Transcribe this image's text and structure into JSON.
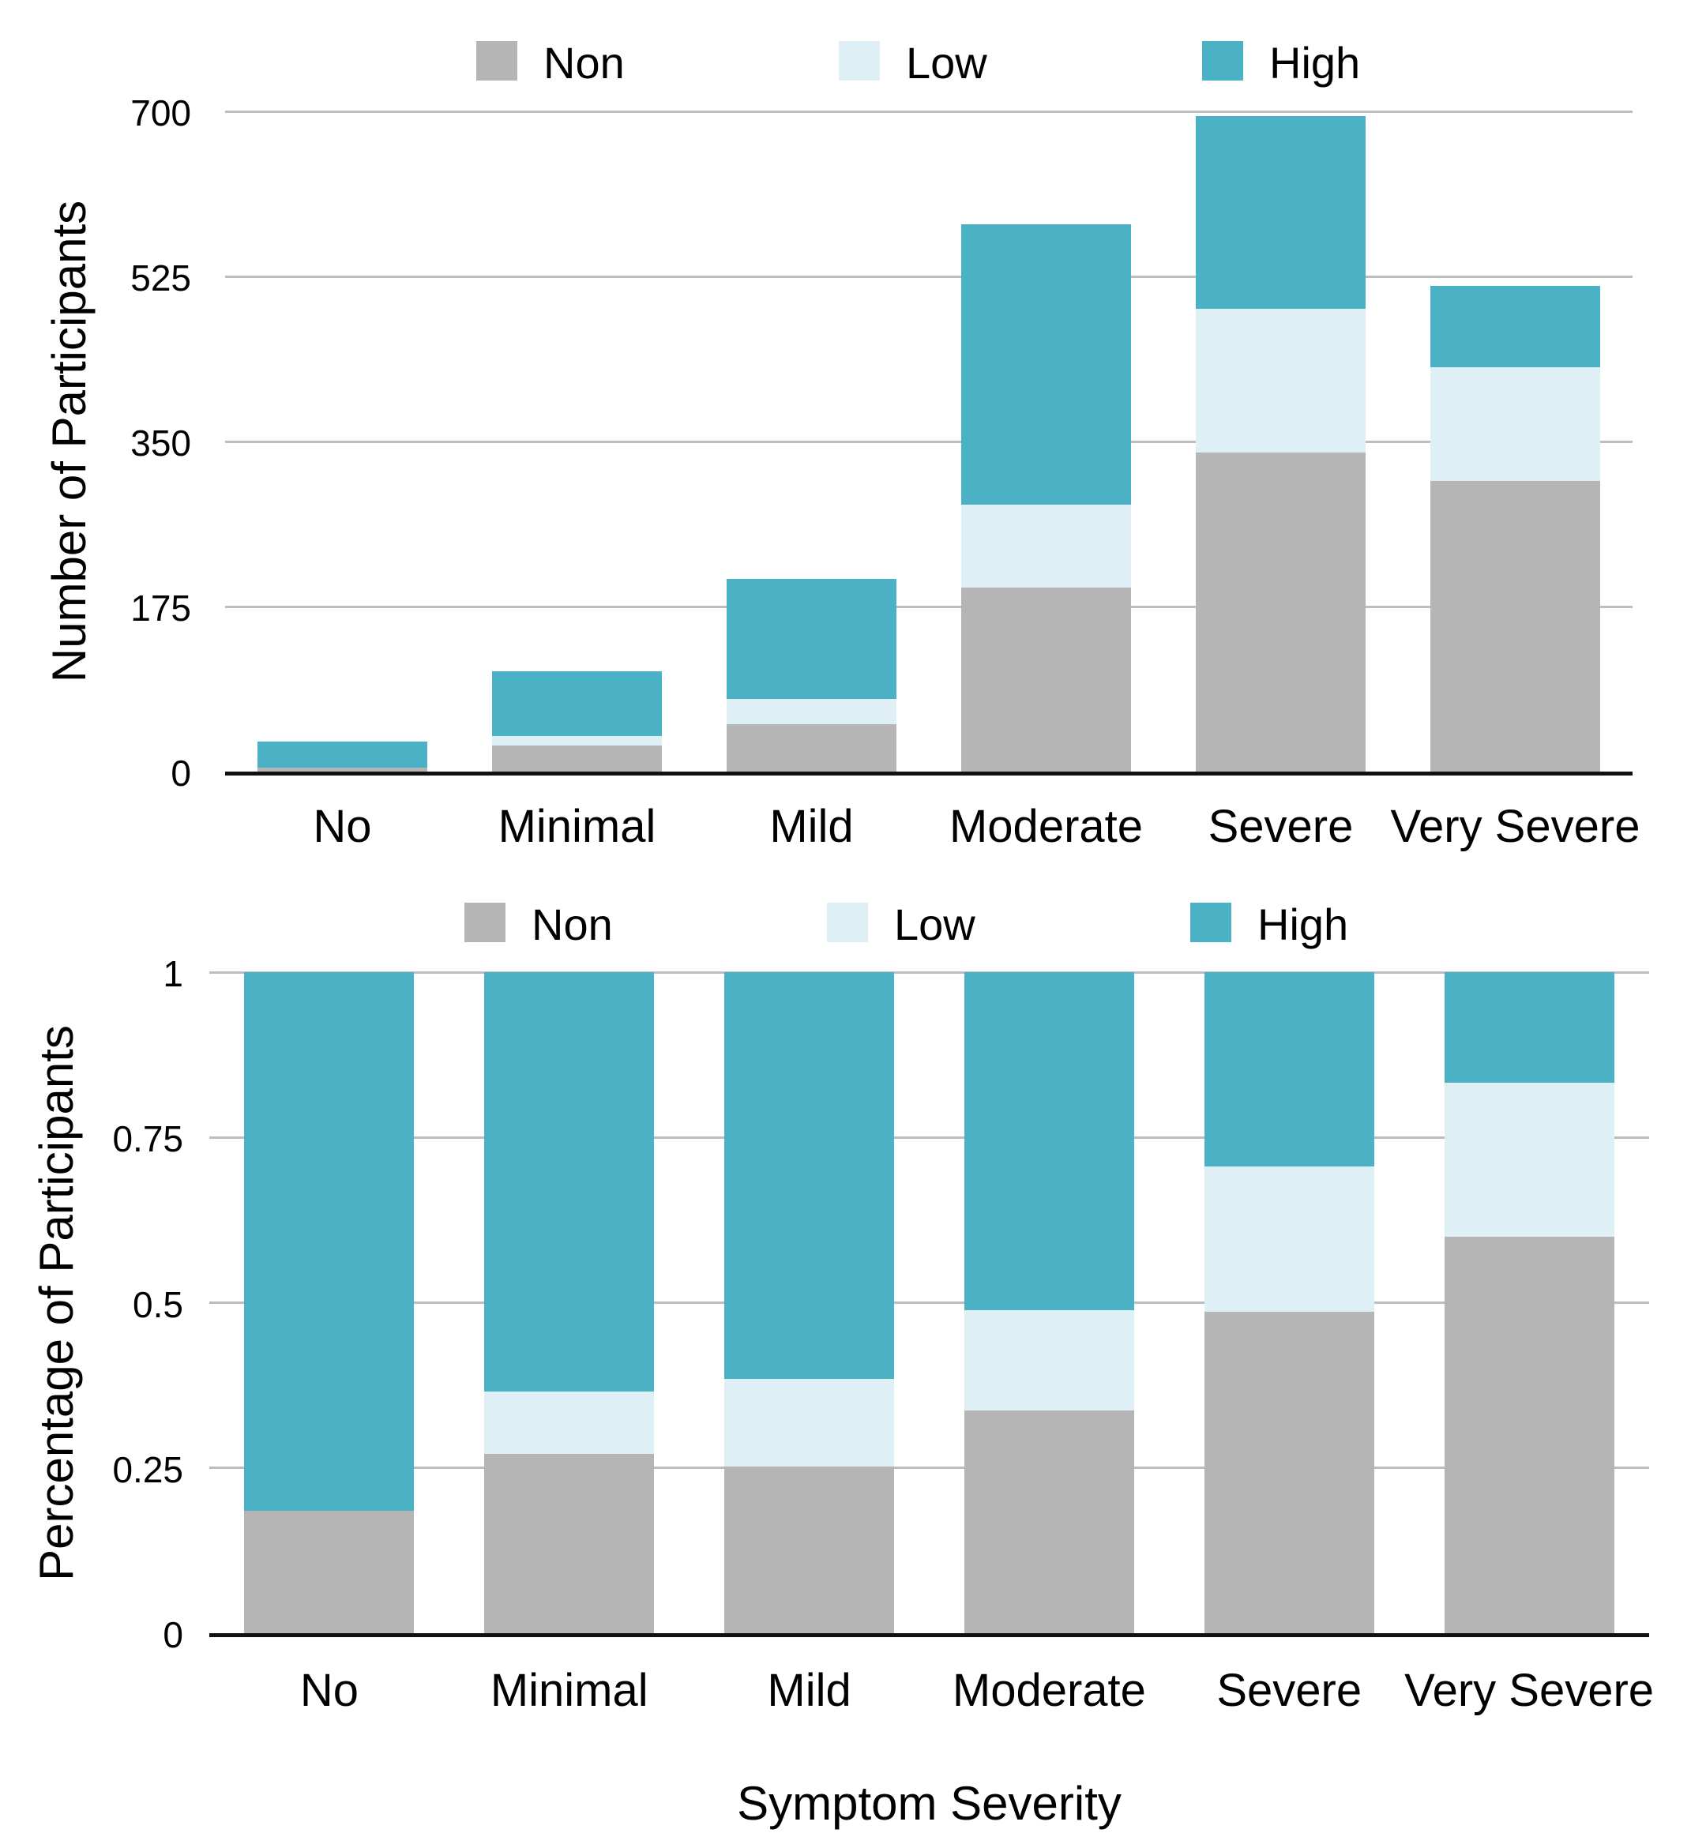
{
  "figure": {
    "background": "#ffffff"
  },
  "palette": {
    "non": "#b5b5b5",
    "low": "#deeff5",
    "high": "#4bb2c5",
    "gridline": "#bdbdbd",
    "axis_line": "#111111",
    "text": "#000000"
  },
  "legend": {
    "items": [
      {
        "label": "Non",
        "color": "non"
      },
      {
        "label": "Low",
        "color": "low"
      },
      {
        "label": "High",
        "color": "high"
      }
    ]
  },
  "chart_data": [
    {
      "type": "bar",
      "stacked": true,
      "title": "",
      "ylabel": "Number of Participants",
      "xlabel": "",
      "categories": [
        "No",
        "Minimal",
        "Mild",
        "Moderate",
        "Severe",
        "Very Severe"
      ],
      "series": [
        {
          "name": "Non",
          "color": "non",
          "values": [
            6,
            29,
            52,
            197,
            340,
            310
          ]
        },
        {
          "name": "Low",
          "color": "low",
          "values": [
            0,
            10,
            27,
            88,
            152,
            120
          ]
        },
        {
          "name": "High",
          "color": "high",
          "values": [
            26,
            67,
            125,
            295,
            203,
            85
          ]
        }
      ],
      "totals": [
        32,
        106,
        204,
        580,
        695,
        515
      ],
      "ylim": [
        0,
        700
      ],
      "yticks": [
        {
          "value": 0,
          "label": "0"
        },
        {
          "value": 175,
          "label": "175"
        },
        {
          "value": 350,
          "label": "350"
        },
        {
          "value": 525,
          "label": "525"
        },
        {
          "value": 700,
          "label": "700"
        }
      ],
      "grid": true,
      "legend_position": "top",
      "normalized": false
    },
    {
      "type": "bar",
      "stacked": true,
      "title": "",
      "ylabel": "Percentage of Participants",
      "xlabel": "Symptom Severity",
      "categories": [
        "No",
        "Minimal",
        "Mild",
        "Moderate",
        "Severe",
        "Very Severe"
      ],
      "series": [
        {
          "name": "Non",
          "color": "non",
          "values": [
            0.1875,
            0.2736,
            0.2549,
            0.3397,
            0.4892,
            0.6019
          ]
        },
        {
          "name": "Low",
          "color": "low",
          "values": [
            0,
            0.0943,
            0.1324,
            0.1517,
            0.2187,
            0.233
          ]
        },
        {
          "name": "High",
          "color": "high",
          "values": [
            0.8125,
            0.6321,
            0.6127,
            0.5086,
            0.2921,
            0.1651
          ]
        }
      ],
      "ylim": [
        0,
        1
      ],
      "yticks": [
        {
          "value": 0,
          "label": "0"
        },
        {
          "value": 0.25,
          "label": "0.25"
        },
        {
          "value": 0.5,
          "label": "0.5"
        },
        {
          "value": 0.75,
          "label": "0.75"
        },
        {
          "value": 1,
          "label": "1"
        }
      ],
      "grid": true,
      "legend_position": "top",
      "normalized": true
    }
  ]
}
